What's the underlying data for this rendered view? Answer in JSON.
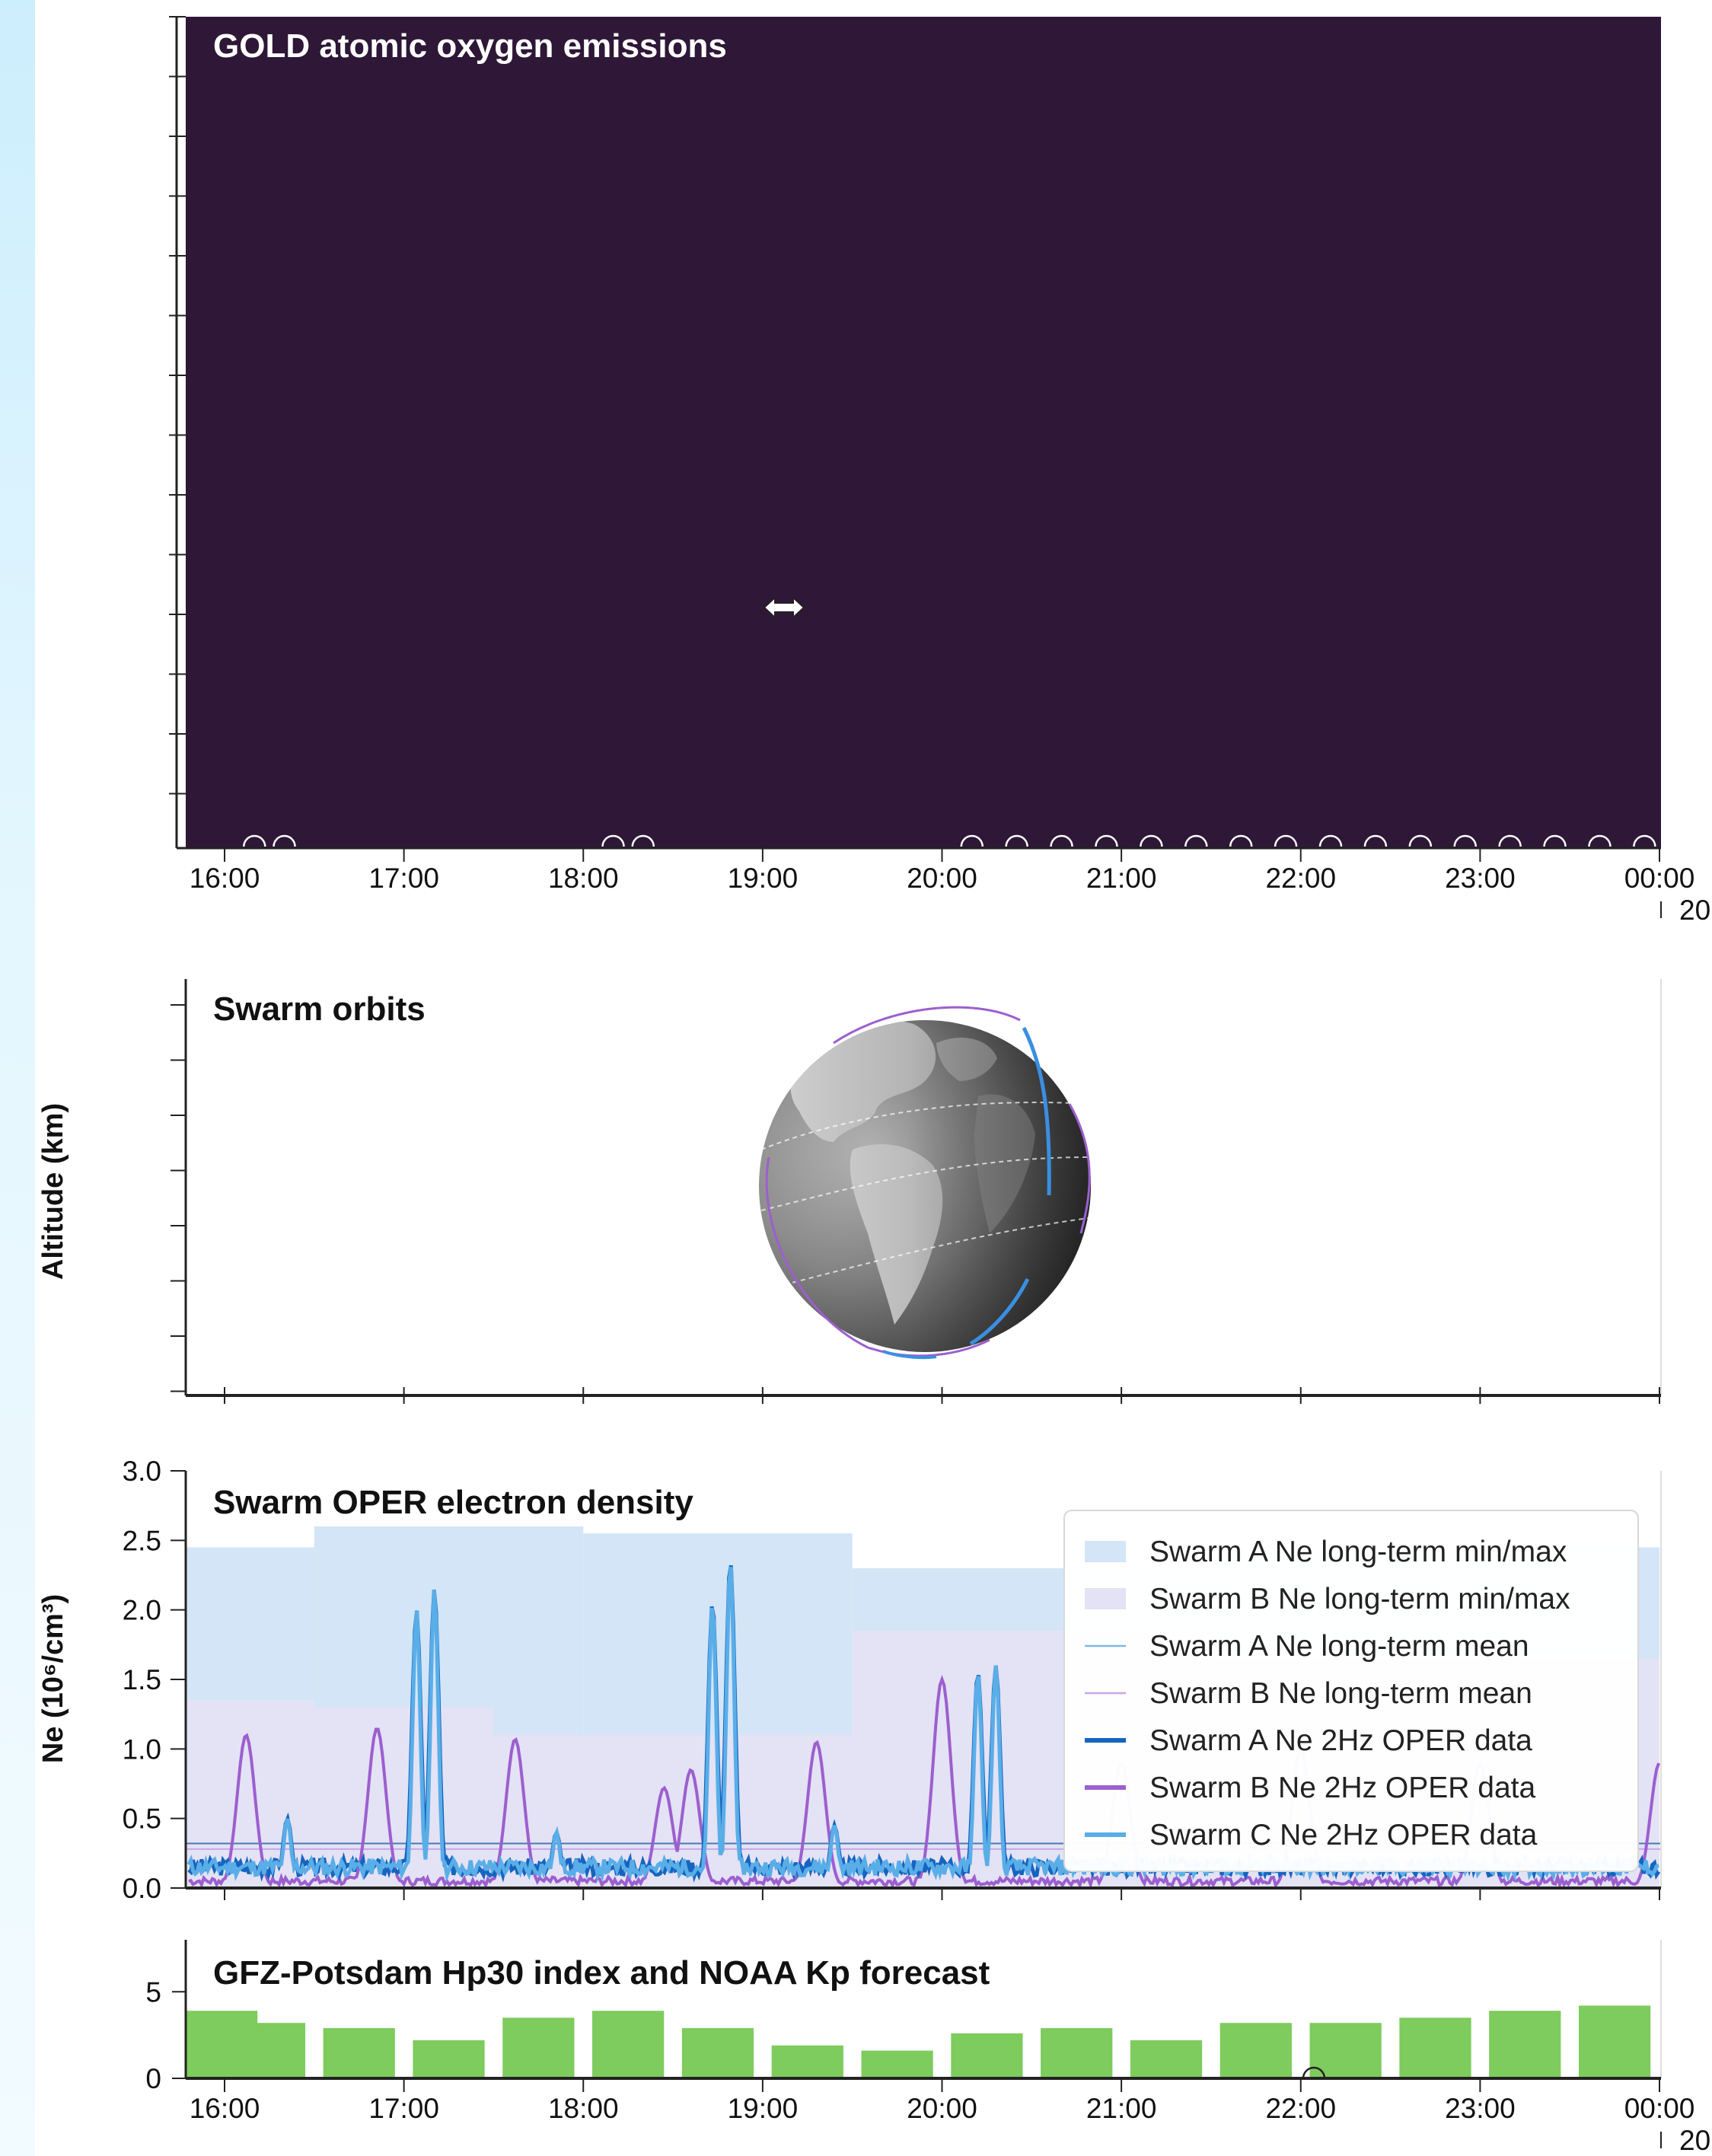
{
  "panels": {
    "gold": {
      "title": "GOLD atomic oxygen emissions",
      "background": "#2e1737"
    },
    "orbits": {
      "title": "Swarm orbits",
      "ylabel": "Altitude (km)"
    },
    "density": {
      "title": "Swarm OPER electron density",
      "ylabel": "Ne (10⁶/cm³)"
    },
    "hp30": {
      "title": "GFZ-Potsdam Hp30 index and NOAA Kp forecast"
    }
  },
  "time_axis": {
    "ticks": [
      "16:00",
      "17:00",
      "18:00",
      "19:00",
      "20:00",
      "21:00",
      "22:00",
      "23:00",
      "00:00"
    ],
    "date_fragment": "20"
  },
  "chart_data": [
    {
      "type": "heatmap",
      "title": "GOLD atomic oxygen emissions",
      "xlabel": "",
      "ylabel": "",
      "note_markers_times": [
        "16:10",
        "16:20",
        "18:10",
        "18:20",
        "20:10",
        "20:25",
        "20:40",
        "20:55",
        "21:10",
        "21:25",
        "21:40",
        "21:55",
        "22:10",
        "22:25",
        "22:40",
        "22:55",
        "23:10",
        "23:25",
        "23:40",
        "23:55"
      ]
    },
    {
      "type": "line",
      "title": "Swarm orbits",
      "ylabel": "Altitude (km)",
      "note": "orthographic globe with Swarm A/B/C ground tracks"
    },
    {
      "type": "area",
      "title": "Swarm OPER electron density",
      "xlabel": "",
      "ylabel": "Ne (10⁶/cm³)",
      "ylim": [
        0,
        3.0
      ],
      "yticks": [
        "0.0",
        "0.5",
        "1.0",
        "1.5",
        "2.0",
        "2.5",
        "3.0"
      ],
      "legend_position": "top-right",
      "legend": [
        {
          "label": "Swarm A Ne long-term min/max",
          "kind": "fill",
          "color": "#d4e5f7"
        },
        {
          "label": "Swarm B Ne long-term min/max",
          "kind": "fill",
          "color": "#e4e2f5"
        },
        {
          "label": "Swarm A Ne long-term mean",
          "kind": "thin",
          "color": "#7fb8e8"
        },
        {
          "label": "Swarm B Ne long-term mean",
          "kind": "thin",
          "color": "#c6a8e6"
        },
        {
          "label": "Swarm A Ne 2Hz OPER data",
          "kind": "thick",
          "color": "#1565c0"
        },
        {
          "label": "Swarm B Ne 2Hz OPER data",
          "kind": "thick",
          "color": "#9c5fcf"
        },
        {
          "label": "Swarm C Ne 2Hz OPER data",
          "kind": "thick",
          "color": "#5aaee8"
        }
      ],
      "swarm_a_minmax": [
        {
          "t0": 15.75,
          "t1": 16.5,
          "max": 2.45
        },
        {
          "t0": 16.5,
          "t1": 18.0,
          "max": 2.6
        },
        {
          "t0": 18.0,
          "t1": 19.5,
          "max": 2.55
        },
        {
          "t0": 19.5,
          "t1": 21.5,
          "max": 2.3
        },
        {
          "t0": 21.5,
          "t1": 24.0,
          "max": 2.45
        }
      ],
      "swarm_b_minmax": [
        {
          "t0": 15.75,
          "t1": 16.5,
          "max": 1.35
        },
        {
          "t0": 16.5,
          "t1": 17.5,
          "max": 1.3
        },
        {
          "t0": 17.5,
          "t1": 19.5,
          "max": 1.1
        },
        {
          "t0": 19.5,
          "t1": 21.5,
          "max": 1.85
        },
        {
          "t0": 21.5,
          "t1": 24.0,
          "max": 1.65
        }
      ],
      "swarm_a_mean": 0.32,
      "swarm_b_mean": 0.28,
      "swarm_b_peaks": [
        {
          "t": 16.12,
          "v": 1.1
        },
        {
          "t": 16.85,
          "v": 1.15
        },
        {
          "t": 17.62,
          "v": 1.07
        },
        {
          "t": 18.45,
          "v": 0.72
        },
        {
          "t": 18.6,
          "v": 0.85
        },
        {
          "t": 19.3,
          "v": 1.05
        },
        {
          "t": 20.0,
          "v": 1.5
        },
        {
          "t": 21.0,
          "v": 0.9
        },
        {
          "t": 22.0,
          "v": 1.0
        },
        {
          "t": 23.0,
          "v": 0.9
        },
        {
          "t": 24.0,
          "v": 0.9
        }
      ],
      "swarm_c_peaks": [
        {
          "t": 16.35,
          "v": 0.5
        },
        {
          "t": 17.07,
          "v": 2.0
        },
        {
          "t": 17.17,
          "v": 2.15
        },
        {
          "t": 17.85,
          "v": 0.4
        },
        {
          "t": 18.72,
          "v": 2.05
        },
        {
          "t": 18.82,
          "v": 2.35
        },
        {
          "t": 19.4,
          "v": 0.45
        },
        {
          "t": 20.2,
          "v": 1.55
        },
        {
          "t": 20.3,
          "v": 1.6
        }
      ],
      "baseline": 0.15
    },
    {
      "type": "bar",
      "title": "GFZ-Potsdam Hp30 index and NOAA Kp forecast",
      "ylim": [
        0,
        8
      ],
      "yticks": [
        "0",
        "5"
      ],
      "color": "#7ecb5e",
      "categories": [
        "15:45",
        "16:15",
        "16:45",
        "17:15",
        "17:45",
        "18:15",
        "18:45",
        "19:15",
        "19:45",
        "20:15",
        "20:45",
        "21:15",
        "21:45",
        "22:15",
        "22:45",
        "23:15",
        "23:45"
      ],
      "values": [
        3.9,
        3.2,
        2.9,
        2.2,
        3.5,
        3.9,
        2.9,
        1.9,
        1.6,
        2.6,
        2.9,
        2.2,
        3.2,
        3.2,
        3.5,
        3.9,
        4.2
      ]
    }
  ]
}
